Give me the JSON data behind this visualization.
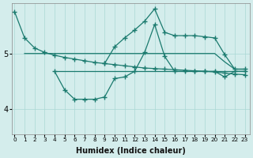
{
  "xlabel": "Humidex (Indice chaleur)",
  "bg_color": "#d4edec",
  "line_color": "#1a7a6e",
  "grid_color": "#aad8d4",
  "x_ticks": [
    0,
    1,
    2,
    3,
    4,
    5,
    6,
    7,
    8,
    9,
    10,
    11,
    12,
    13,
    14,
    15,
    16,
    17,
    18,
    19,
    20,
    21,
    22,
    23
  ],
  "y_ticks": [
    4,
    5
  ],
  "ylim": [
    3.55,
    5.9
  ],
  "xlim": [
    -0.3,
    23.5
  ],
  "line1_x": [
    0,
    1,
    2,
    3,
    4,
    5,
    6,
    7,
    8,
    9,
    10,
    11,
    12,
    13,
    14,
    15,
    16,
    17,
    18,
    19,
    20,
    21,
    22,
    23
  ],
  "line1_y": [
    5.75,
    5.28,
    5.1,
    5.02,
    4.97,
    4.93,
    4.9,
    4.87,
    4.84,
    4.82,
    4.8,
    4.78,
    4.76,
    4.74,
    4.73,
    4.72,
    4.71,
    4.7,
    4.69,
    4.68,
    4.67,
    4.65,
    4.63,
    4.62
  ],
  "line2_x": [
    1,
    2,
    3,
    4,
    5,
    6,
    7,
    8,
    9,
    10,
    11,
    12,
    13,
    14,
    15,
    16,
    17,
    18,
    19,
    20,
    21,
    22,
    23
  ],
  "line2_y": [
    5.0,
    5.0,
    5.0,
    5.0,
    5.0,
    5.0,
    5.0,
    5.0,
    5.0,
    5.0,
    5.0,
    5.0,
    5.0,
    5.0,
    5.0,
    5.0,
    5.0,
    5.0,
    5.0,
    5.0,
    4.85,
    4.72,
    4.72
  ],
  "line3_x": [
    9,
    10,
    11,
    12,
    13,
    14,
    15,
    16,
    17,
    18,
    19,
    20,
    21,
    22,
    23
  ],
  "line3_y": [
    4.82,
    5.12,
    5.28,
    5.42,
    5.58,
    5.8,
    5.38,
    5.32,
    5.32,
    5.32,
    5.3,
    5.28,
    4.98,
    4.72,
    4.72
  ],
  "line4_x": [
    4,
    5,
    6,
    7,
    8,
    9,
    10,
    11,
    12,
    13,
    14,
    15,
    16,
    17,
    18,
    19,
    20,
    21,
    22,
    23
  ],
  "line4_y": [
    4.68,
    4.35,
    4.18,
    4.18,
    4.18,
    4.22,
    4.55,
    4.58,
    4.68,
    5.02,
    5.52,
    4.95,
    4.68,
    4.68,
    4.68,
    4.68,
    4.68,
    4.58,
    4.68,
    4.68
  ],
  "line5_x": [
    4,
    5,
    6,
    7,
    8,
    9,
    10,
    11,
    12,
    13,
    14,
    15,
    16,
    17,
    18,
    19,
    20,
    21,
    22,
    23
  ],
  "line5_y": [
    4.68,
    4.68,
    4.68,
    4.68,
    4.68,
    4.68,
    4.68,
    4.68,
    4.68,
    4.68,
    4.68,
    4.68,
    4.68,
    4.68,
    4.68,
    4.68,
    4.68,
    4.68,
    4.68,
    4.68
  ]
}
